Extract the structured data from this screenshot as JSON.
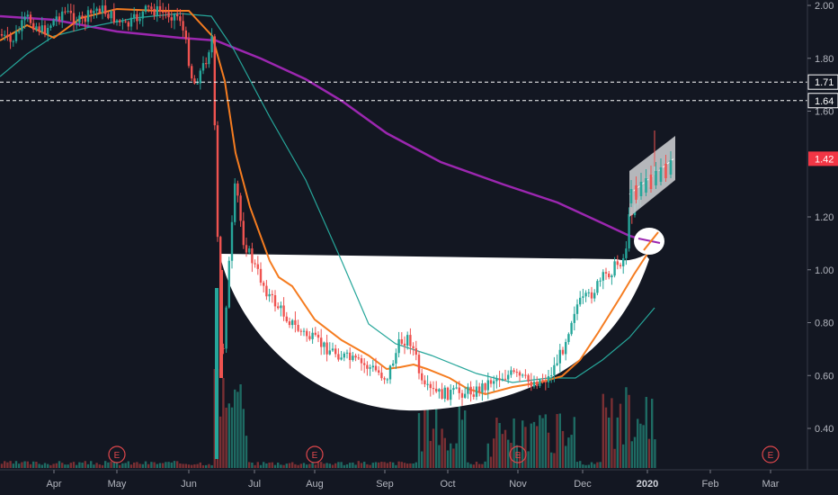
{
  "chart_data": {
    "type": "candlestick",
    "y_axis": {
      "ticks": [
        "2.00",
        "1.80",
        "1.60",
        "1.20",
        "1.00",
        "0.80",
        "0.60",
        "0.40"
      ],
      "range": [
        0.28,
        2.02
      ],
      "scale": "linear"
    },
    "x_axis": {
      "labels": [
        "Apr",
        "May",
        "Jun",
        "Jul",
        "Aug",
        "Sep",
        "Oct",
        "Nov",
        "Dec",
        "2020",
        "Feb",
        "Mar"
      ],
      "bold": [
        "2020"
      ]
    },
    "price_labels": [
      {
        "text": "1.71",
        "value": 1.71,
        "style": "dashed-line"
      },
      {
        "text": "1.64",
        "value": 1.64,
        "style": "dashed-line"
      },
      {
        "text": "1.42",
        "value": 1.42,
        "style": "current-price"
      }
    ],
    "earnings_markers": {
      "symbol": "E",
      "months": [
        "May",
        "Aug",
        "Nov",
        "Mar"
      ]
    },
    "ma_fast_color": "#f57c20",
    "ma_mid_color": "#26a69a",
    "ma_slow_color": "#9c27b0",
    "up_color": "#26a69a",
    "down_color": "#ef5350",
    "pattern": "cup-and-handle",
    "grid": false,
    "legend": "none"
  }
}
